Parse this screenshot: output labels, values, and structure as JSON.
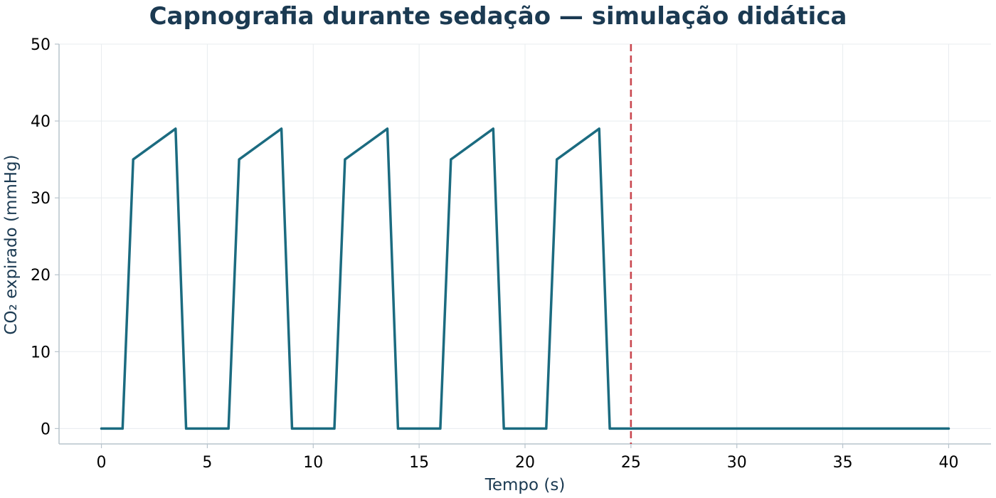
{
  "chart_data": {
    "type": "line",
    "title": "Capnografia durante sedação — simulação didática",
    "xlabel": "Tempo (s)",
    "ylabel": "CO₂ expirado (mmHg)",
    "xlim": [
      -2,
      42
    ],
    "ylim": [
      -2,
      50
    ],
    "xticks": [
      0,
      5,
      10,
      15,
      20,
      25,
      30,
      35,
      40
    ],
    "yticks": [
      0,
      10,
      20,
      30,
      40,
      50
    ],
    "grid": true,
    "series": [
      {
        "color": "#1b6b80",
        "x": [
          0,
          1,
          1.5,
          3.5,
          4,
          6,
          6.5,
          8.5,
          9,
          11,
          11.5,
          13.5,
          14,
          16,
          16.5,
          18.5,
          19,
          21,
          21.5,
          23.5,
          24,
          40
        ],
        "y": [
          0,
          0,
          35,
          39,
          0,
          0,
          35,
          39,
          0,
          0,
          35,
          39,
          0,
          0,
          35,
          39,
          0,
          0,
          35,
          39,
          0,
          0
        ]
      }
    ],
    "vlines": [
      {
        "x": 25,
        "color": "#c9474f",
        "style": "dashed"
      }
    ]
  }
}
